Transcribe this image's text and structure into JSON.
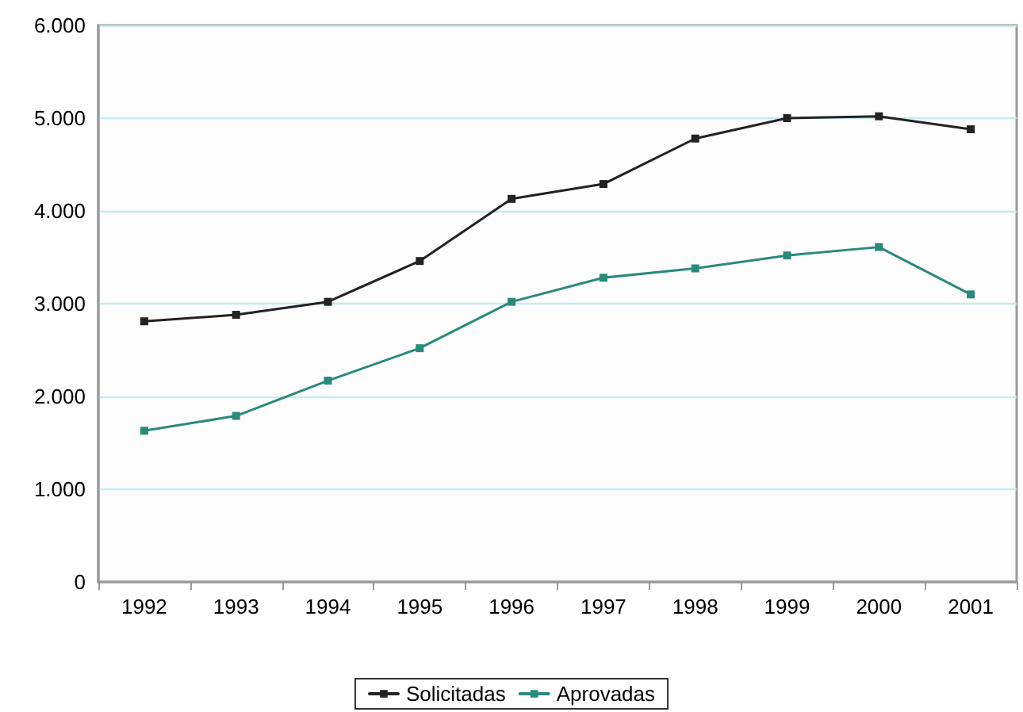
{
  "chart_data": {
    "type": "line",
    "categories": [
      "1992",
      "1993",
      "1994",
      "1995",
      "1996",
      "1997",
      "1998",
      "1999",
      "2000",
      "2001"
    ],
    "series": [
      {
        "name": "Solicitadas",
        "color": "#222222",
        "values": [
          2810,
          2880,
          3020,
          3460,
          4130,
          4290,
          4780,
          5000,
          5020,
          4880
        ]
      },
      {
        "name": "Aprovadas",
        "color": "#2a8a7a",
        "values": [
          1630,
          1790,
          2170,
          2520,
          3020,
          3280,
          3380,
          3520,
          3610,
          3100
        ]
      }
    ],
    "ylim": [
      0,
      6000
    ],
    "yticks": [
      0,
      {
        "value": 1000,
        "label": "1.000"
      },
      {
        "value": 2000,
        "label": "2.000"
      },
      {
        "value": 3000,
        "label": "3.000"
      },
      {
        "value": 4000,
        "label": "4.000"
      },
      {
        "value": 5000,
        "label": "5.000"
      },
      {
        "value": 6000,
        "label": "6.000"
      }
    ],
    "grid": "y",
    "legend": "bottom",
    "marker": "square",
    "line_style": "solid"
  }
}
